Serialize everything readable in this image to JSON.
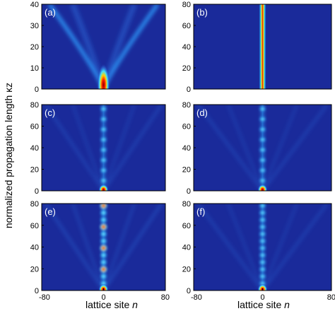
{
  "figure": {
    "ylabel": "normalized propagation length κz",
    "xlabel_text": "lattice site ",
    "xlabel_var": "n",
    "colors": {
      "background": "#1a2a9a",
      "hot": "#e00000"
    }
  },
  "chart_data": [
    {
      "type": "heatmap",
      "label": "(a)",
      "x": {
        "range": [
          -80,
          80
        ],
        "ticks": []
      },
      "y": {
        "range": [
          0,
          40
        ],
        "ticks": [
          0,
          10,
          20,
          30,
          40
        ]
      },
      "pattern": "diffraction",
      "intensity_peak_z": 0,
      "description": "beam spreads into two symmetric branches"
    },
    {
      "type": "heatmap",
      "label": "(b)",
      "x": {
        "range": [
          -80,
          80
        ],
        "ticks": []
      },
      "y": {
        "range": [
          0,
          80
        ],
        "ticks": [
          0,
          20,
          40,
          60,
          80
        ]
      },
      "pattern": "localized",
      "width_sites": 4
    },
    {
      "type": "heatmap",
      "label": "(c)",
      "x": {
        "range": [
          -80,
          80
        ],
        "ticks": []
      },
      "y": {
        "range": [
          0,
          80
        ],
        "ticks": [
          0,
          20,
          40,
          60,
          80
        ]
      },
      "pattern": "breathing",
      "period_z": 9.5,
      "strength": 0.55
    },
    {
      "type": "heatmap",
      "label": "(d)",
      "x": {
        "range": [
          -80,
          80
        ],
        "ticks": []
      },
      "y": {
        "range": [
          0,
          80
        ],
        "ticks": [
          0,
          20,
          40,
          60,
          80
        ]
      },
      "pattern": "breathing",
      "period_z": 9.5,
      "strength": 0.5
    },
    {
      "type": "heatmap",
      "label": "(e)",
      "x": {
        "range": [
          -80,
          80
        ],
        "ticks": [
          -80,
          0,
          80
        ]
      },
      "y": {
        "range": [
          0,
          80
        ],
        "ticks": [
          0,
          20,
          40,
          60,
          80
        ]
      },
      "pattern": "breathing",
      "period_z": 6.5,
      "strength": 0.85
    },
    {
      "type": "heatmap",
      "label": "(f)",
      "x": {
        "range": [
          -80,
          80
        ],
        "ticks": [
          -80,
          0,
          80
        ]
      },
      "y": {
        "range": [
          0,
          80
        ],
        "ticks": [
          0,
          20,
          40,
          60,
          80
        ]
      },
      "pattern": "breathing",
      "period_z": 6.5,
      "strength": 0.5
    }
  ]
}
